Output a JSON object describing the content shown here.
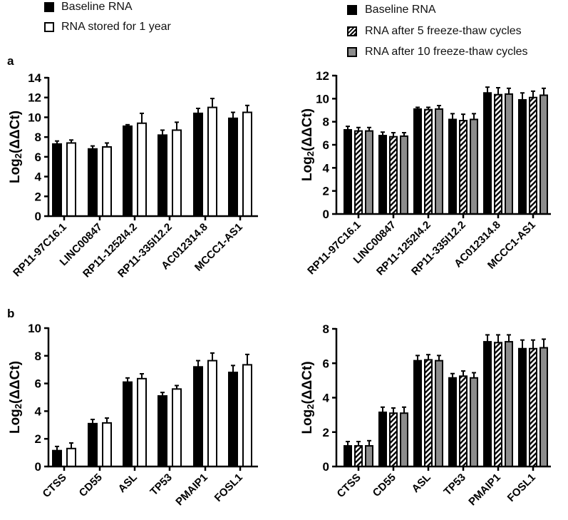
{
  "panel_letters": {
    "a": "a",
    "b": "b"
  },
  "legends": {
    "left": [
      "Baseline RNA",
      "RNA stored for 1 year"
    ],
    "right": [
      "Baseline RNA",
      "RNA after 5 freeze-thaw cycles",
      "RNA after 10 freeze-thaw cycles"
    ]
  },
  "colors": {
    "baseline": "#000000",
    "stored": "#ffffff",
    "ft5": "hatched",
    "ft10": "#8c8c8c"
  },
  "chart_data": [
    {
      "id": "a-left",
      "type": "bar",
      "title": "",
      "xlabel": "",
      "ylabel": "Log2(ΔΔCt)",
      "ylim": [
        0,
        14
      ],
      "yticks": [
        0,
        2,
        4,
        6,
        8,
        10,
        12,
        14
      ],
      "categories": [
        "RP11-97C16.1",
        "LINC00847",
        "RP11-1252I4.2",
        "RP11-335I12.2",
        "AC012314.8",
        "MCCC1-AS1"
      ],
      "series": [
        {
          "name": "Baseline RNA",
          "style": "black",
          "values": [
            7.3,
            6.8,
            9.1,
            8.2,
            10.4,
            9.9
          ],
          "error": [
            0.3,
            0.3,
            0.15,
            0.5,
            0.5,
            0.6
          ]
        },
        {
          "name": "RNA stored for 1 year",
          "style": "white",
          "values": [
            7.4,
            7.0,
            9.4,
            8.7,
            11.0,
            10.5
          ],
          "error": [
            0.3,
            0.4,
            1.0,
            0.8,
            0.9,
            0.7
          ]
        }
      ]
    },
    {
      "id": "a-right",
      "type": "bar",
      "title": "",
      "xlabel": "",
      "ylabel": "Log2(ΔΔCt)",
      "ylim": [
        0,
        12
      ],
      "yticks": [
        0,
        2,
        4,
        6,
        8,
        10,
        12
      ],
      "categories": [
        "RP11-97C16.1",
        "LINC00847",
        "RP11-1252I4.2",
        "RP11-335I12.2",
        "AC012314.8",
        "MCCC1-AS1"
      ],
      "series": [
        {
          "name": "Baseline RNA",
          "style": "black",
          "values": [
            7.3,
            6.8,
            9.1,
            8.2,
            10.5,
            9.9
          ],
          "error": [
            0.3,
            0.3,
            0.15,
            0.5,
            0.5,
            0.6
          ]
        },
        {
          "name": "RNA after 5 freeze-thaw cycles",
          "style": "hatch",
          "values": [
            7.2,
            6.7,
            9.05,
            8.1,
            10.35,
            10.1
          ],
          "error": [
            0.3,
            0.35,
            0.2,
            0.55,
            0.6,
            0.55
          ]
        },
        {
          "name": "RNA after 10 freeze-thaw cycles",
          "style": "grey",
          "values": [
            7.2,
            6.75,
            9.1,
            8.2,
            10.4,
            10.3
          ],
          "error": [
            0.3,
            0.3,
            0.3,
            0.5,
            0.5,
            0.6
          ]
        }
      ]
    },
    {
      "id": "b-left",
      "type": "bar",
      "title": "",
      "xlabel": "",
      "ylabel": "Log2(ΔΔCt)",
      "ylim": [
        0,
        10
      ],
      "yticks": [
        0,
        2,
        4,
        6,
        8,
        10
      ],
      "categories": [
        "CTSS",
        "CD55",
        "ASL",
        "TP53",
        "PMAIP1",
        "FOSL1"
      ],
      "series": [
        {
          "name": "Baseline RNA",
          "style": "black",
          "values": [
            1.15,
            3.1,
            6.1,
            5.1,
            7.2,
            6.8
          ],
          "error": [
            0.3,
            0.3,
            0.3,
            0.25,
            0.45,
            0.5
          ]
        },
        {
          "name": "RNA stored for 1 year",
          "style": "white",
          "values": [
            1.3,
            3.15,
            6.35,
            5.6,
            7.65,
            7.35
          ],
          "error": [
            0.4,
            0.35,
            0.35,
            0.25,
            0.55,
            0.75
          ]
        }
      ]
    },
    {
      "id": "b-right",
      "type": "bar",
      "title": "",
      "xlabel": "",
      "ylabel": "Log2(ΔΔCt)",
      "ylim": [
        0,
        8
      ],
      "yticks": [
        0,
        2,
        4,
        6,
        8
      ],
      "categories": [
        "CTSS",
        "CD55",
        "ASL",
        "TP53",
        "PMAIP1",
        "FOSL1"
      ],
      "series": [
        {
          "name": "Baseline RNA",
          "style": "black",
          "values": [
            1.2,
            3.15,
            6.15,
            5.15,
            7.25,
            6.85
          ],
          "error": [
            0.25,
            0.3,
            0.3,
            0.25,
            0.4,
            0.5
          ]
        },
        {
          "name": "RNA after 5 freeze-thaw cycles",
          "style": "hatch",
          "values": [
            1.2,
            3.1,
            6.2,
            5.25,
            7.2,
            6.85
          ],
          "error": [
            0.25,
            0.3,
            0.3,
            0.3,
            0.45,
            0.5
          ]
        },
        {
          "name": "RNA after 10 freeze-thaw cycles",
          "style": "grey",
          "values": [
            1.2,
            3.1,
            6.15,
            5.15,
            7.25,
            6.9
          ],
          "error": [
            0.3,
            0.35,
            0.3,
            0.3,
            0.4,
            0.5
          ]
        }
      ]
    }
  ]
}
